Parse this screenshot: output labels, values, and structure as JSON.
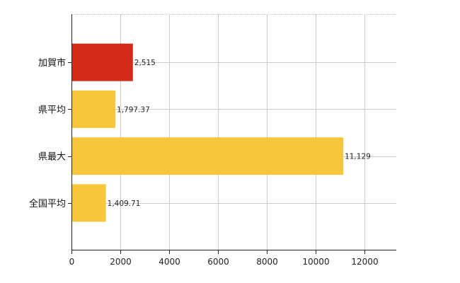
{
  "chart_data": {
    "type": "bar",
    "orientation": "horizontal",
    "categories": [
      "加賀市",
      "県平均",
      "県最大",
      "全国平均"
    ],
    "values": [
      2515,
      1797.37,
      11129,
      1409.71
    ],
    "value_labels": [
      "2,515",
      "1,797.37",
      "11,129",
      "1,409.71"
    ],
    "bar_colors": [
      "#d42a1a",
      "#f8c63c",
      "#f8c63c",
      "#f8c63c"
    ],
    "xlim": [
      0,
      13300
    ],
    "x_ticks": [
      0,
      2000,
      4000,
      6000,
      8000,
      10000,
      12000
    ],
    "x_tick_labels": [
      "0",
      "2000",
      "4000",
      "6000",
      "8000",
      "10000",
      "12000"
    ],
    "grid": true,
    "gridline_color": "#cccccc",
    "legend": "none",
    "title": "",
    "xlabel": "",
    "ylabel": ""
  }
}
